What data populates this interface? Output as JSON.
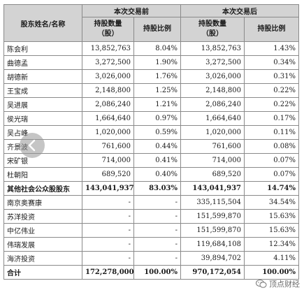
{
  "table": {
    "header": {
      "name_col": "股东姓名/名称",
      "before_group": "本次交易前",
      "after_group": "本次交易后",
      "shares_label_line1": "持股数量",
      "shares_label_line2": "（股）",
      "ratio_label": "持股比例"
    },
    "rows": [
      {
        "name": "陈会利",
        "before_shares": "13,852,763",
        "before_ratio": "8.04%",
        "after_shares": "13,852,763",
        "after_ratio": "1.43%",
        "bold": false
      },
      {
        "name": "曲德孟",
        "before_shares": "3,272,500",
        "before_ratio": "1.90%",
        "after_shares": "3,272,500",
        "after_ratio": "0.34%",
        "bold": false
      },
      {
        "name": "胡德新",
        "before_shares": "3,026,000",
        "before_ratio": "1.76%",
        "after_shares": "3,026,000",
        "after_ratio": "0.31%",
        "bold": false
      },
      {
        "name": "王宝成",
        "before_shares": "2,148,800",
        "before_ratio": "1.25%",
        "after_shares": "2,148,800",
        "after_ratio": "0.22%",
        "bold": false
      },
      {
        "name": "吴进展",
        "before_shares": "2,086,240",
        "before_ratio": "1.21%",
        "after_shares": "2,086,240",
        "after_ratio": "0.22%",
        "bold": false
      },
      {
        "name": "侯光瑞",
        "before_shares": "1,664,640",
        "before_ratio": "0.97%",
        "after_shares": "1,664,640",
        "after_ratio": "0.17%",
        "bold": false
      },
      {
        "name": "吴占峰",
        "before_shares": "1,020,000",
        "before_ratio": "0.59%",
        "after_shares": "1,020,000",
        "after_ratio": "0.11%",
        "bold": false
      },
      {
        "name": "齐景波",
        "before_shares": "761,600",
        "before_ratio": "0.44%",
        "after_shares": "761,600",
        "after_ratio": "0.08%",
        "bold": false
      },
      {
        "name": "宋矿银",
        "before_shares": "714,000",
        "before_ratio": "0.41%",
        "after_shares": "714,000",
        "after_ratio": "0.07%",
        "bold": false
      },
      {
        "name": "杜朝阳",
        "before_shares": "689,520",
        "before_ratio": "0.40%",
        "after_shares": "689,520",
        "after_ratio": "0.07%",
        "bold": false
      },
      {
        "name": "其他社会公众股股东",
        "before_shares": "143,041,937",
        "before_ratio": "83.03%",
        "after_shares": "143,041,937",
        "after_ratio": "14.74%",
        "bold": true
      },
      {
        "name": "南京奥赛康",
        "before_shares": "-",
        "before_ratio": "-",
        "after_shares": "335,115,504",
        "after_ratio": "34.54%",
        "bold": false
      },
      {
        "name": "苏洋投资",
        "before_shares": "-",
        "before_ratio": "-",
        "after_shares": "151,599,870",
        "after_ratio": "15.63%",
        "bold": false
      },
      {
        "name": "中亿伟业",
        "before_shares": "-",
        "before_ratio": "-",
        "after_shares": "151,599,870",
        "after_ratio": "15.63%",
        "bold": false
      },
      {
        "name": "伟瑞发展",
        "before_shares": "-",
        "before_ratio": "-",
        "after_shares": "119,684,108",
        "after_ratio": "12.34%",
        "bold": false
      },
      {
        "name": "海济投资",
        "before_shares": "-",
        "before_ratio": "-",
        "after_shares": "39,894,702",
        "after_ratio": "4.11%",
        "bold": false
      },
      {
        "name": "合计",
        "before_shares": "172,278,000",
        "before_ratio": "100.00%",
        "after_shares": "970,172,054",
        "after_ratio": "100.00%",
        "bold": true
      }
    ]
  },
  "overlay": {
    "nav_icon": "chevron-left-icon",
    "watermark_icon": "wechat-icon",
    "watermark_text": "顶点财经"
  }
}
